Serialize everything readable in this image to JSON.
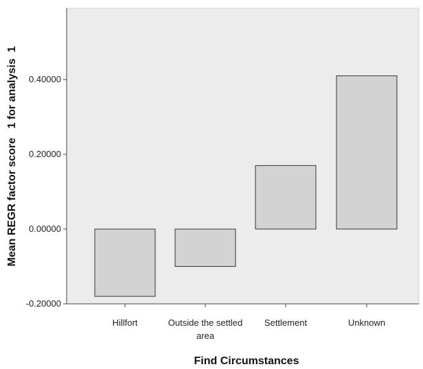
{
  "chart_data": {
    "type": "bar",
    "title": "",
    "xlabel": "Find Circumstances",
    "ylabel": "Mean REGR factor score   1 for analysis  1",
    "categories": [
      [
        "Hillfort"
      ],
      [
        "Outside the settled",
        "area"
      ],
      [
        "Settlement"
      ],
      [
        "Unknown"
      ]
    ],
    "values": [
      -0.18,
      -0.1,
      0.17,
      0.41
    ],
    "ylim": [
      -0.2,
      0.57
    ],
    "yticks": [
      {
        "value": -0.2,
        "label": "-0.20000"
      },
      {
        "value": 0.0,
        "label": "0.00000"
      },
      {
        "value": 0.2,
        "label": "0.20000"
      },
      {
        "value": 0.4,
        "label": "0.40000"
      }
    ],
    "grid": false,
    "legend": "none",
    "colors": {
      "plot_background": "#ececec",
      "bar_fill": "#d3d3d3",
      "bar_stroke": "#333333",
      "axis": "#444444"
    }
  }
}
